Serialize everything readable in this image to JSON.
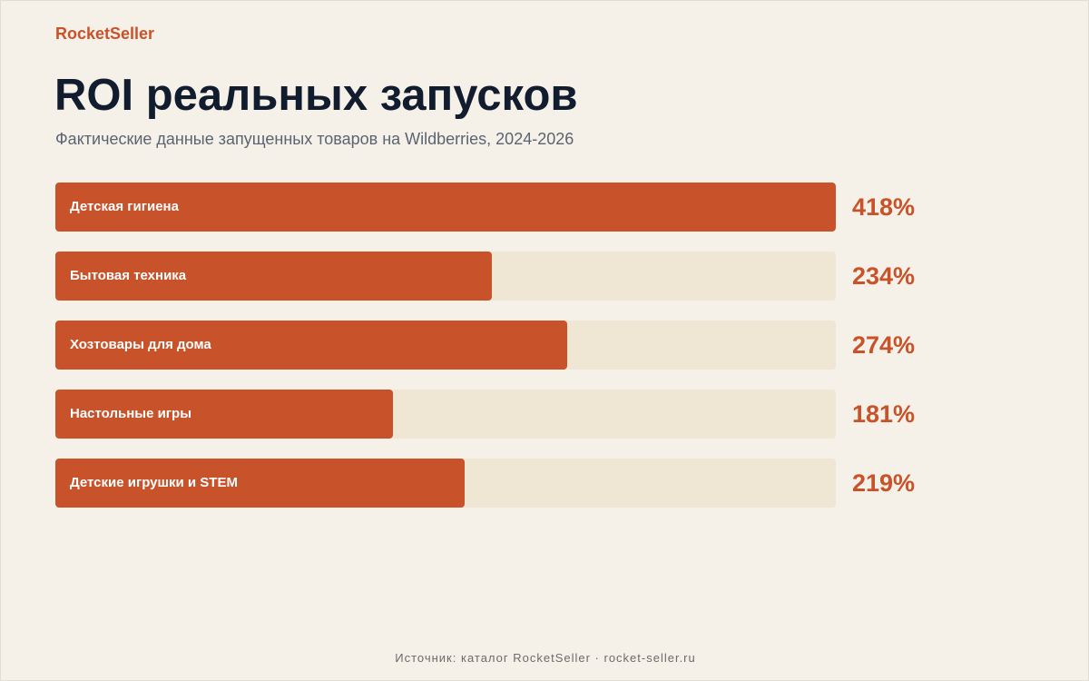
{
  "brand": "RocketSeller",
  "title": "ROI реальных запусков",
  "subtitle": "Фактические данные запущенных товаров на Wildberries, 2024-2026",
  "footer": "Источник: каталог RocketSeller · rocket-seller.ru",
  "colors": {
    "accent": "#c8522a",
    "track": "#f0e6d4",
    "background": "#f6f1e8",
    "title": "#111d2e"
  },
  "chart_data": {
    "type": "bar",
    "orientation": "horizontal",
    "categories": [
      "Детская гигиена",
      "Бытовая техника",
      "Хозтовары для дома",
      "Настольные игры",
      "Детские игрушки и STEM"
    ],
    "values": [
      418,
      234,
      274,
      181,
      219
    ],
    "value_labels": [
      "418%",
      "234%",
      "274%",
      "181%",
      "219%"
    ],
    "unit": "%",
    "xlim": [
      0,
      418
    ],
    "grid": false,
    "legend": "none"
  }
}
